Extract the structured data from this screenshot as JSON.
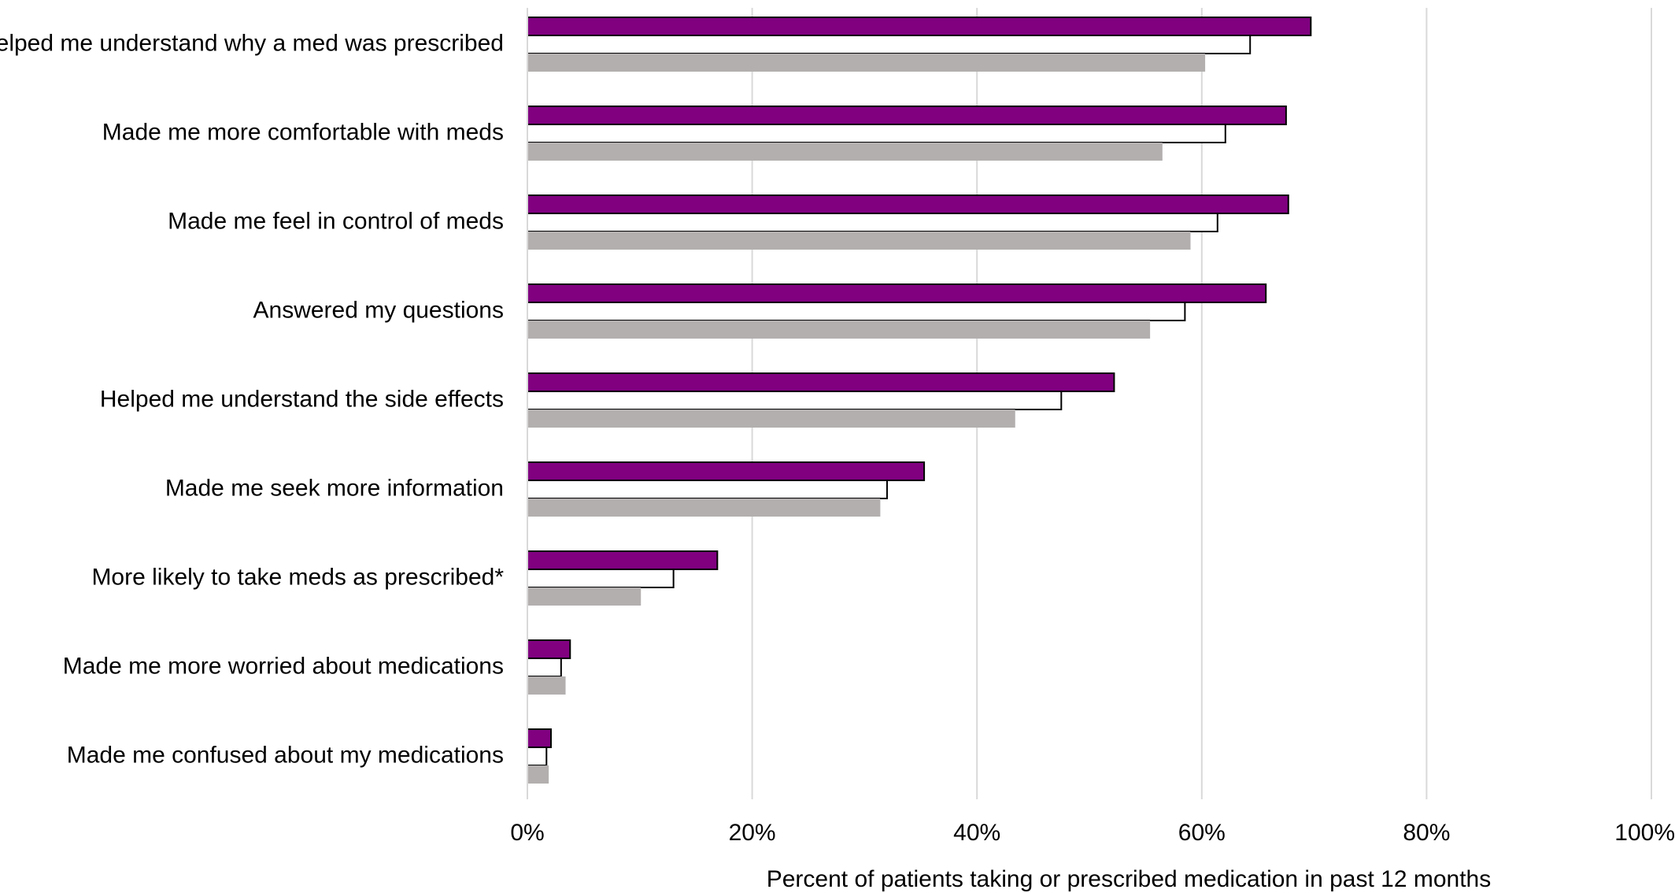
{
  "chart_data": {
    "type": "bar",
    "orientation": "horizontal",
    "title": "",
    "xlabel": "Percent of patients taking or prescribed medication in past 12 months",
    "ylabel": "",
    "xlim": [
      0,
      100
    ],
    "x_ticks": [
      "0%",
      "20%",
      "40%",
      "60%",
      "80%",
      "100%"
    ],
    "grid": "vertical",
    "legend": "none",
    "categories": [
      "Helped me understand why a med was prescribed",
      "Made me more comfortable with meds",
      "Made me feel in control of meds",
      "Answered my questions",
      "Helped me understand the side effects",
      "Made me seek more information",
      "More likely to take meds as prescribed*",
      "Made me more worried about medications",
      "Made me confused about my medications"
    ],
    "series": [
      {
        "color": "#800080",
        "outline": "#000000",
        "values": [
          69.7,
          67.5,
          67.7,
          65.7,
          52.2,
          35.3,
          16.9,
          3.8,
          2.1
        ]
      },
      {
        "color": "#ffffff",
        "outline": "#000000",
        "values": [
          64.3,
          62.1,
          61.4,
          58.5,
          47.5,
          32.0,
          13.0,
          3.0,
          1.7
        ]
      },
      {
        "color": "#b3afaf",
        "outline": "none",
        "values": [
          60.3,
          56.5,
          59.0,
          55.4,
          43.4,
          31.4,
          10.1,
          3.4,
          1.9
        ]
      }
    ]
  }
}
